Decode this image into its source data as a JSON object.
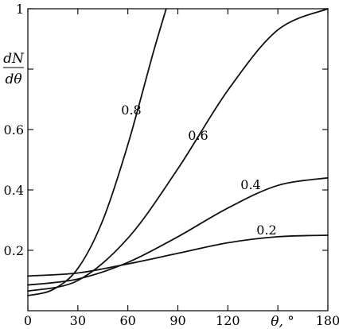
{
  "chart_data": {
    "type": "line",
    "xlabel": "θ, °",
    "ylabel_numerator": "dN",
    "ylabel_denominator": "dθ",
    "xlim": [
      0,
      180
    ],
    "ylim": [
      0,
      1
    ],
    "x_ticks": [
      0,
      30,
      60,
      90,
      120,
      150,
      180
    ],
    "x_tick_labels": [
      "0",
      "30",
      "60",
      "90",
      "120",
      "",
      "180"
    ],
    "y_ticks": [
      0.2,
      0.4,
      0.6,
      1
    ],
    "y_tick_labels": [
      "0.2",
      "0.4",
      "0.6",
      "1"
    ],
    "grid": false,
    "series": [
      {
        "name": "0.2",
        "x": [
          0,
          30,
          60,
          90,
          120,
          150,
          180
        ],
        "y": [
          0.115,
          0.125,
          0.155,
          0.19,
          0.225,
          0.245,
          0.25
        ]
      },
      {
        "name": "0.4",
        "x": [
          0,
          30,
          60,
          90,
          120,
          150,
          180
        ],
        "y": [
          0.085,
          0.105,
          0.16,
          0.245,
          0.34,
          0.415,
          0.44
        ]
      },
      {
        "name": "0.6",
        "x": [
          0,
          30,
          60,
          90,
          120,
          150,
          180
        ],
        "y": [
          0.065,
          0.1,
          0.24,
          0.47,
          0.73,
          0.93,
          1.0
        ]
      },
      {
        "name": "0.8",
        "x": [
          0,
          15,
          30,
          45,
          60,
          75,
          83
        ],
        "y": [
          0.05,
          0.07,
          0.14,
          0.3,
          0.55,
          0.85,
          1.0
        ]
      }
    ]
  }
}
